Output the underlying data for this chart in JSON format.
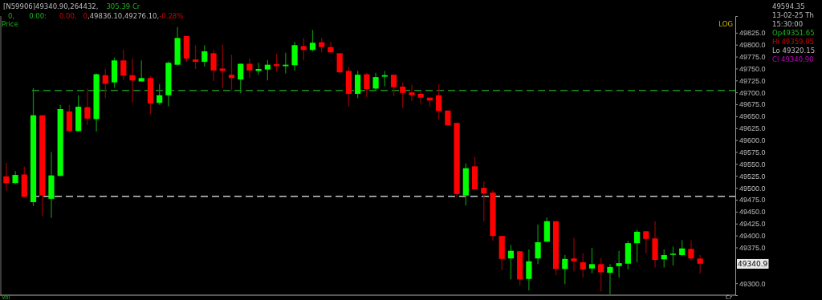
{
  "chart_data": {
    "type": "candlestick",
    "categories": [
      null,
      null,
      null,
      null,
      null,
      null,
      null,
      null,
      null,
      null,
      null,
      null,
      null,
      null,
      null,
      null,
      null,
      null,
      null,
      null,
      null,
      null,
      null,
      null,
      null,
      null,
      null,
      null,
      null,
      null,
      null,
      null,
      null,
      null,
      null,
      null,
      null,
      null,
      null,
      null,
      null,
      null,
      null,
      null,
      null,
      null,
      null,
      null,
      null,
      null,
      null,
      null,
      null,
      null,
      null,
      null,
      null,
      null,
      null,
      null,
      null,
      null,
      null,
      null,
      null,
      null,
      null,
      null,
      null,
      null,
      null,
      null,
      null,
      null,
      null,
      null,
      null,
      null
    ],
    "ohlc": [
      [
        49524,
        49553,
        49494,
        49510
      ],
      [
        49510,
        49535,
        49508,
        49527
      ],
      [
        49528,
        49545,
        49480,
        49481
      ],
      [
        49470,
        49709,
        49462,
        49652
      ],
      [
        49652,
        49652,
        49442,
        49484
      ],
      [
        49477,
        49575,
        49437,
        49526
      ],
      [
        49525,
        49674,
        49524,
        49665
      ],
      [
        49660,
        49674,
        49616,
        49619
      ],
      [
        49619,
        49694,
        49618,
        49670
      ],
      [
        49669,
        49708,
        49632,
        49645
      ],
      [
        49644,
        49740,
        49618,
        49738
      ],
      [
        49736,
        49749,
        49688,
        49718
      ],
      [
        49721,
        49773,
        49710,
        49767
      ],
      [
        49767,
        49790,
        49726,
        49735
      ],
      [
        49736,
        49771,
        49679,
        49725
      ],
      [
        49723,
        49767,
        49722,
        49730
      ],
      [
        49730,
        49734,
        49654,
        49677
      ],
      [
        49678,
        49717,
        49674,
        49694
      ],
      [
        49694,
        49765,
        49671,
        49762
      ],
      [
        49758,
        49837,
        49757,
        49814
      ],
      [
        49818,
        49818,
        49764,
        49771
      ],
      [
        49769,
        49799,
        49749,
        49764
      ],
      [
        49764,
        49799,
        49754,
        49786
      ],
      [
        49782,
        49789,
        49724,
        49746
      ],
      [
        49750,
        49800,
        49709,
        49745
      ],
      [
        49737,
        49779,
        49704,
        49730
      ],
      [
        49727,
        49760,
        49698,
        49760
      ],
      [
        49760,
        49771,
        49730,
        49746
      ],
      [
        49745,
        49762,
        49737,
        49749
      ],
      [
        49748,
        49768,
        49725,
        49758
      ],
      [
        49759,
        49781,
        49744,
        49755
      ],
      [
        49755,
        49783,
        49740,
        49758
      ],
      [
        49757,
        49806,
        49746,
        49799
      ],
      [
        49797,
        49814,
        49767,
        49789
      ],
      [
        49789,
        49831,
        49786,
        49804
      ],
      [
        49805,
        49814,
        49784,
        49795
      ],
      [
        49795,
        49806,
        49782,
        49784
      ],
      [
        49782,
        49782,
        49741,
        49742
      ],
      [
        49745,
        49754,
        49670,
        49697
      ],
      [
        49697,
        49745,
        49688,
        49737
      ],
      [
        49738,
        49741,
        49690,
        49707
      ],
      [
        49708,
        49741,
        49704,
        49732
      ],
      [
        49733,
        49745,
        49713,
        49736
      ],
      [
        49737,
        49737,
        49692,
        49711
      ],
      [
        49712,
        49721,
        49667,
        49699
      ],
      [
        49700,
        49716,
        49682,
        49694
      ],
      [
        49697,
        49703,
        49676,
        49689
      ],
      [
        49689,
        49689,
        49670,
        49683
      ],
      [
        49694,
        49717,
        49643,
        49661
      ],
      [
        49662,
        49662,
        49631,
        49631
      ],
      [
        49636,
        49636,
        49481,
        49487
      ],
      [
        49484,
        49551,
        49463,
        49541
      ],
      [
        49545,
        49565,
        49497,
        49497
      ],
      [
        49500,
        49514,
        49430,
        49488
      ],
      [
        49490,
        49495,
        49389,
        49399
      ],
      [
        49399,
        49399,
        49327,
        49351
      ],
      [
        49352,
        49380,
        49308,
        49368
      ],
      [
        49367,
        49367,
        49295,
        49308
      ],
      [
        49309,
        49371,
        49285,
        49346
      ],
      [
        49352,
        49423,
        49340,
        49386
      ],
      [
        49387,
        49438,
        49387,
        49430
      ],
      [
        49430,
        49430,
        49317,
        49330
      ],
      [
        49330,
        49359,
        49298,
        49351
      ],
      [
        49352,
        49395,
        49325,
        49346
      ],
      [
        49344,
        49363,
        49312,
        49329
      ],
      [
        49331,
        49374,
        49321,
        49340
      ],
      [
        49340,
        49353,
        49283,
        49323
      ],
      [
        49322,
        49340,
        49277,
        49334
      ],
      [
        49336,
        49368,
        49312,
        49342
      ],
      [
        49341,
        49389,
        49329,
        49384
      ],
      [
        49384,
        49412,
        49344,
        49408
      ],
      [
        49409,
        49409,
        49363,
        49393
      ],
      [
        49394,
        49430,
        49333,
        49349
      ],
      [
        49350,
        49371,
        49333,
        49359
      ],
      [
        49360,
        49377,
        49337,
        49362
      ],
      [
        49359,
        49390,
        49358,
        49373
      ],
      [
        49372,
        49390,
        49348,
        49352
      ],
      [
        49351.65,
        49359.05,
        49320.15,
        49340.9
      ]
    ],
    "ylim": [
      49275,
      49860
    ],
    "yticks": [
      {
        "value": 49825,
        "label": "49825.0"
      },
      {
        "value": 49800,
        "label": "49800.0"
      },
      {
        "value": 49775,
        "label": "49775.0"
      },
      {
        "value": 49750,
        "label": "49750.0"
      },
      {
        "value": 49725,
        "label": "49725.0"
      },
      {
        "value": 49700,
        "label": "49700.0"
      },
      {
        "value": 49675,
        "label": "49675.0"
      },
      {
        "value": 49650,
        "label": "49650.0"
      },
      {
        "value": 49625,
        "label": "49625.0"
      },
      {
        "value": 49600,
        "label": "49600.0"
      },
      {
        "value": 49575,
        "label": "49575.0"
      },
      {
        "value": 49550,
        "label": "49550.0"
      },
      {
        "value": 49525,
        "label": "49525.0"
      },
      {
        "value": 49500,
        "label": "49500.0"
      },
      {
        "value": 49475,
        "label": "49475.0"
      },
      {
        "value": 49450,
        "label": "49450.0"
      },
      {
        "value": 49425,
        "label": "49425.0"
      },
      {
        "value": 49400,
        "label": "49400.0"
      },
      {
        "value": 49375,
        "label": "49375.0"
      },
      {
        "value": 49300,
        "label": "49300.0"
      }
    ],
    "tick_labels": "y",
    "grid": false,
    "ref_lines": [
      {
        "axis": "y",
        "value": 49704,
        "color": "#1e8c1e",
        "line_style": "dashed"
      },
      {
        "axis": "y",
        "value": 49482,
        "color": "#c8c8c8",
        "line_style": "dashed"
      }
    ],
    "annotations": [
      "[N59906]49340.90,264432,",
      "305.39 Cr",
      "0,",
      "0.00:",
      "0.00,",
      "0",
      ",49836.10,49276.10,",
      "-0.28%",
      "Price",
      "LOG",
      "Vol",
      "Cr",
      "49594.35",
      "13-02-25 Th",
      "15:30:00",
      "Op49351.65",
      "Hi 49359.05",
      "Lo 49320.15",
      "Cl 49340.90",
      "49340.9"
    ]
  }
}
